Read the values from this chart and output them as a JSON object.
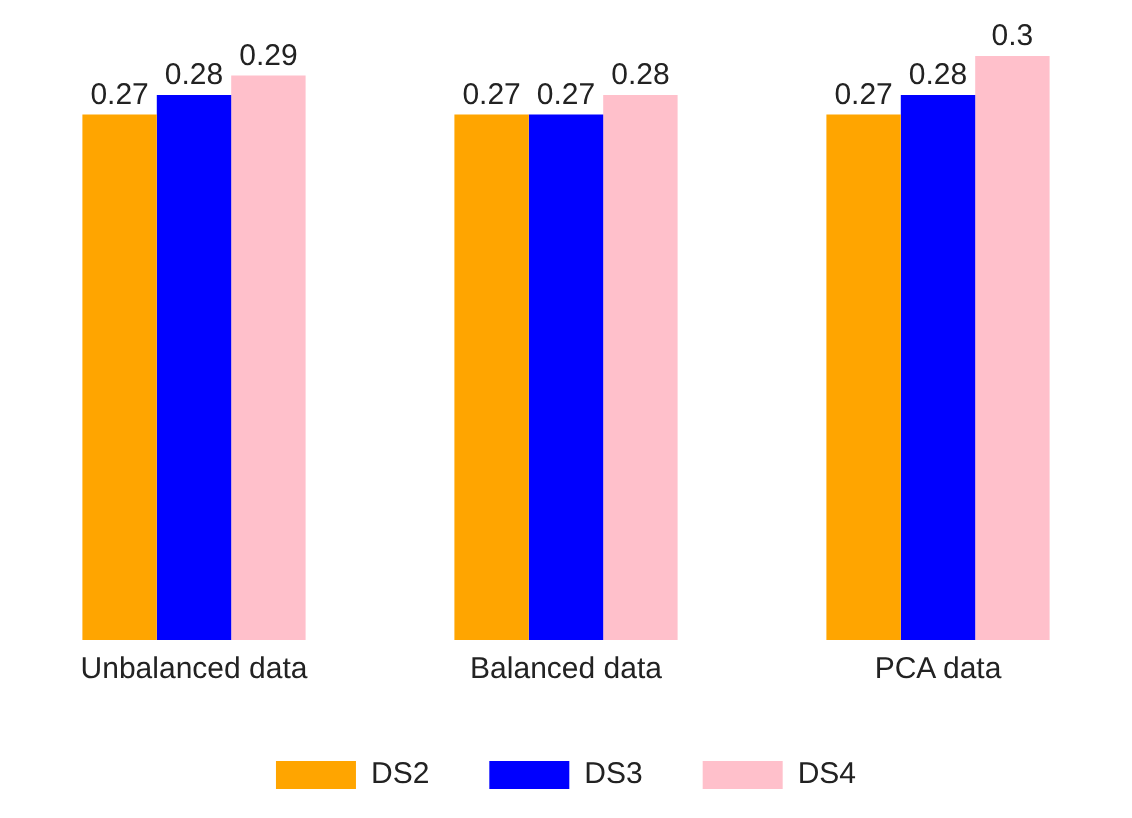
{
  "chart_data": {
    "type": "bar",
    "categories": [
      "Unbalanced data",
      "Balanced data",
      "PCA data"
    ],
    "series": [
      {
        "name": "DS2",
        "color": "#ffa500",
        "values": [
          0.27,
          0.27,
          0.27
        ]
      },
      {
        "name": "DS3",
        "color": "#0000ff",
        "values": [
          0.28,
          0.27,
          0.28
        ]
      },
      {
        "name": "DS4",
        "color": "#ffc0cb",
        "values": [
          0.29,
          0.28,
          0.3
        ]
      }
    ],
    "data_labels": true,
    "grid": false,
    "legend": "bottom"
  }
}
